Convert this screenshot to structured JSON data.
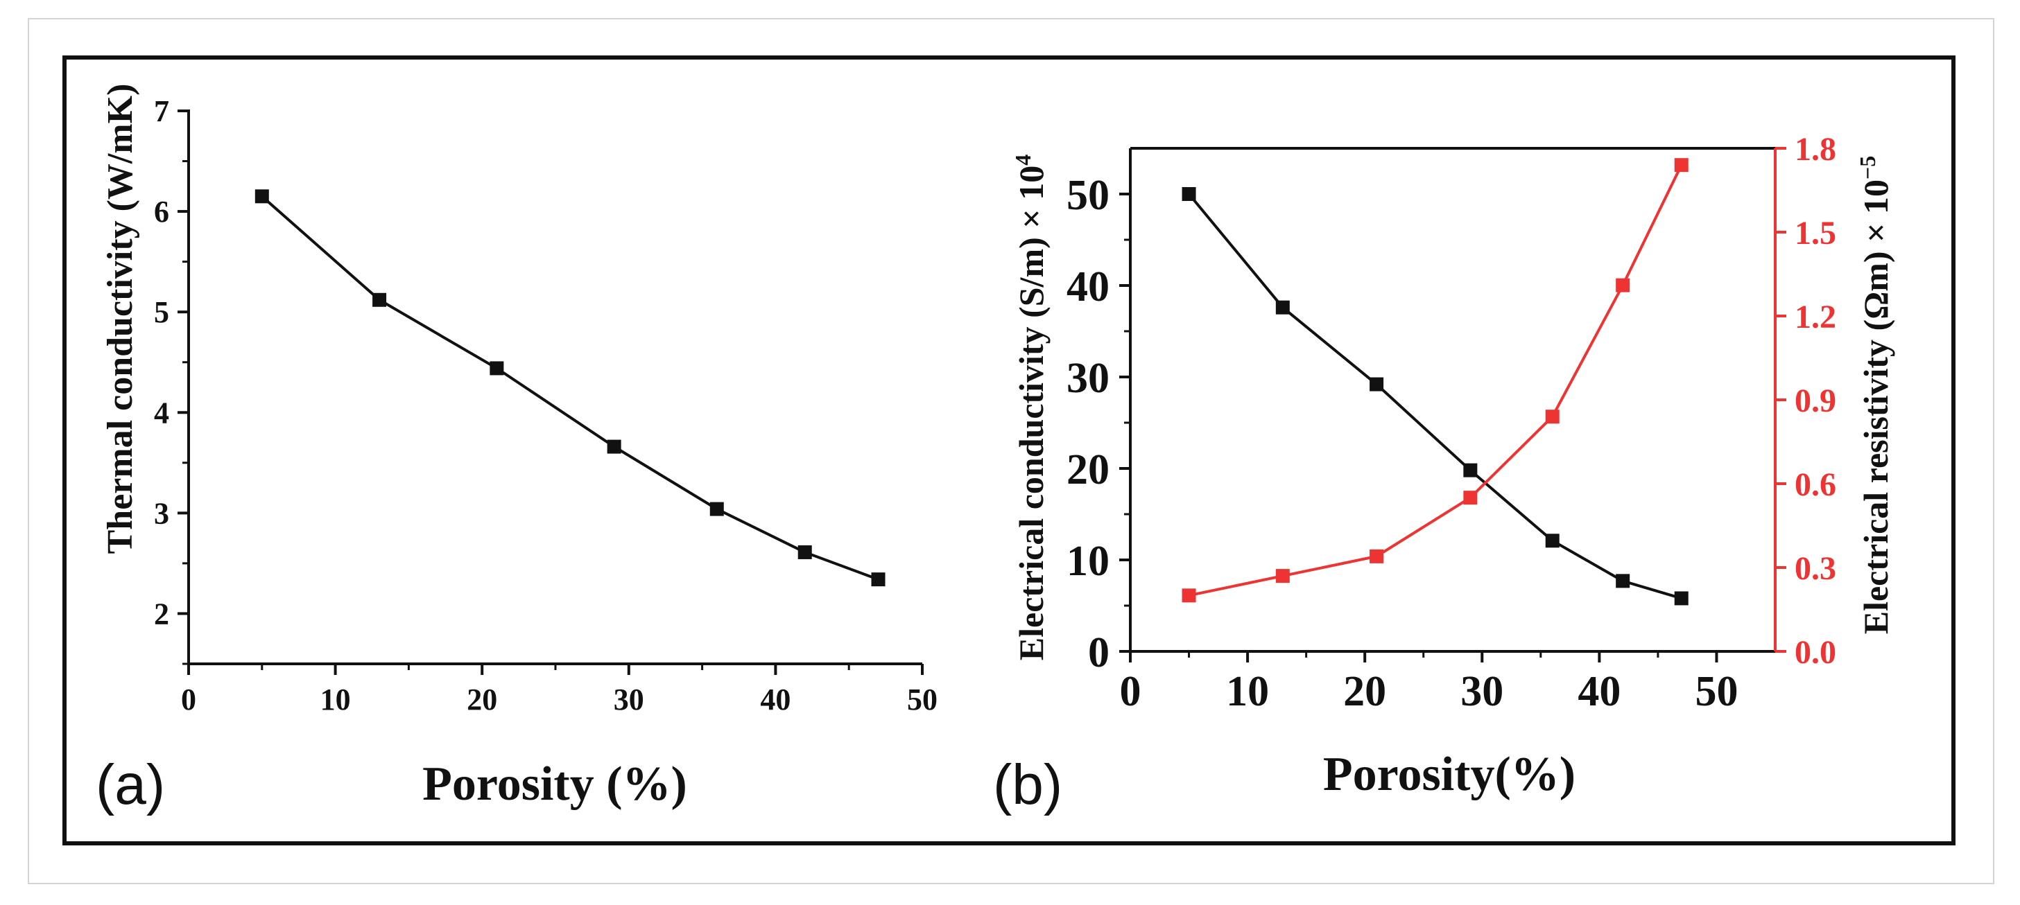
{
  "chart_data": [
    {
      "type": "line",
      "panel_label": "(a)",
      "title": "",
      "xlabel": "Porosity (%)",
      "ylabel": "Thermal conductivity (W/mK)",
      "xlim": [
        0,
        50
      ],
      "ylim": [
        1.5,
        7
      ],
      "xticks": [
        0,
        10,
        20,
        30,
        40,
        50
      ],
      "yticks": [
        2,
        3,
        4,
        5,
        6,
        7
      ],
      "series": [
        {
          "name": "Thermal conductivity",
          "color": "#111111",
          "marker": "square",
          "x": [
            5,
            13,
            21,
            29,
            36,
            42,
            47
          ],
          "y": [
            6.15,
            5.12,
            4.44,
            3.66,
            3.04,
            2.61,
            2.34
          ]
        }
      ]
    },
    {
      "type": "line",
      "panel_label": "(b)",
      "title": "",
      "xlabel": "Porosity(%)",
      "ylabel_left": "Electrical conductivity (S/m) × 10",
      "ylabel_left_exp": "4",
      "ylabel_right": "Electrical resistivity (Ωm) × 10",
      "ylabel_right_exp": "−5",
      "xlim": [
        0,
        55
      ],
      "ylim_left": [
        0,
        55
      ],
      "ylim_right": [
        0,
        1.8
      ],
      "xticks": [
        0,
        10,
        20,
        30,
        40,
        50
      ],
      "yticks_left": [
        0,
        10,
        20,
        30,
        40,
        50
      ],
      "yticks_right": [
        "0.0",
        "0.3",
        "0.6",
        "0.9",
        "1.2",
        "1.5",
        "1.8"
      ],
      "series": [
        {
          "name": "Electrical conductivity",
          "axis": "left",
          "color": "#111111",
          "marker": "square",
          "x": [
            5,
            13,
            21,
            29,
            36,
            42,
            47
          ],
          "y": [
            50,
            37.6,
            29.2,
            19.8,
            12.1,
            7.7,
            5.8
          ]
        },
        {
          "name": "Electrical resistivity",
          "axis": "right",
          "color": "#ee3333",
          "marker": "square",
          "x": [
            5,
            13,
            21,
            29,
            36,
            42,
            47
          ],
          "y": [
            0.2,
            0.27,
            0.34,
            0.55,
            0.84,
            1.31,
            1.74
          ]
        }
      ]
    }
  ]
}
